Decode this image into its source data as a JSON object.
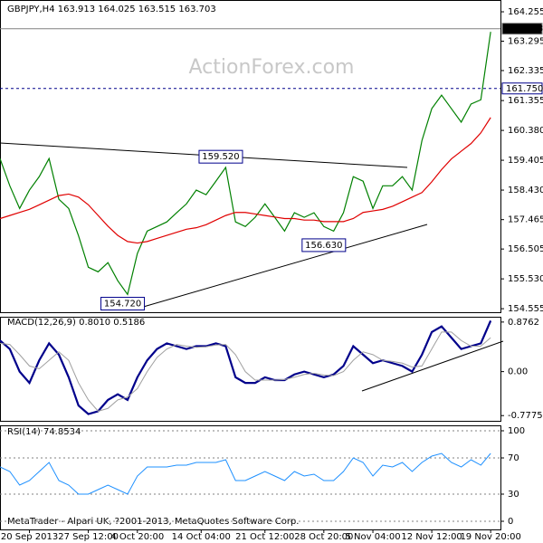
{
  "chart_data": [
    {
      "type": "line",
      "title": "GBPJPY,H4  163.913 164.025 163.515 163.703",
      "watermark": "ActionForex.com",
      "xlim": [
        0,
        51
      ],
      "ylim": [
        154.44,
        164.64
      ],
      "yticks": [
        164.255,
        163.295,
        162.335,
        161.355,
        {
          "value": 160.38,
          "label": "160.380"
        },
        159.405,
        {
          "value": 158.43,
          "label": "158.430"
        },
        157.465,
        156.505,
        {
          "value": 155.53,
          "label": "155.530"
        },
        154.555
      ],
      "levels": [
        {
          "value": 163.703,
          "label": "163.703",
          "dashed": false,
          "color": "#808080"
        },
        {
          "value": 161.75,
          "label": "161.750",
          "dashed": true,
          "color": "#00008b"
        }
      ],
      "annotations": [
        {
          "label": "159.520",
          "value": 159.52,
          "x": 22.5
        },
        {
          "label": "156.630",
          "value": 156.63,
          "x": 33
        },
        {
          "label": "154.720",
          "value": 154.72,
          "x": 12.5
        }
      ],
      "series": [
        {
          "name": "GBPJPY",
          "color": "#008000",
          "width": 1.2,
          "values": [
            159.46,
            158.57,
            157.83,
            158.43,
            158.87,
            159.46,
            158.13,
            157.83,
            156.94,
            155.91,
            155.76,
            156.06,
            155.47,
            155.02,
            156.36,
            157.09,
            157.24,
            157.39,
            157.69,
            157.98,
            158.43,
            158.28,
            158.72,
            159.17,
            157.39,
            157.24,
            157.54,
            157.98,
            157.54,
            157.09,
            157.69,
            157.54,
            157.69,
            157.24,
            157.09,
            157.69,
            158.87,
            158.72,
            157.83,
            158.57,
            158.57,
            158.87,
            158.43,
            160.05,
            161.09,
            161.53,
            161.09,
            160.65,
            161.24,
            161.38,
            163.6
          ]
        },
        {
          "name": "MA",
          "color": "#e00000",
          "width": 1.2,
          "values": [
            157.5,
            157.6,
            157.7,
            157.8,
            157.95,
            158.1,
            158.25,
            158.3,
            158.2,
            157.95,
            157.6,
            157.25,
            156.95,
            156.75,
            156.7,
            156.75,
            156.85,
            156.95,
            157.05,
            157.15,
            157.2,
            157.3,
            157.45,
            157.6,
            157.7,
            157.7,
            157.65,
            157.6,
            157.55,
            157.5,
            157.5,
            157.45,
            157.45,
            157.4,
            157.4,
            157.4,
            157.5,
            157.7,
            157.75,
            157.8,
            157.9,
            158.05,
            158.2,
            158.35,
            158.7,
            159.1,
            159.45,
            159.7,
            159.95,
            160.3,
            160.8
          ]
        }
      ]
    },
    {
      "type": "line",
      "title": "MACD(12,26,9) 0.8010 0.5186",
      "xlim": [
        0,
        51
      ],
      "ylim": [
        -0.87,
        0.97
      ],
      "yticks": [
        0.8762,
        {
          "value": 0,
          "label": "0.00"
        },
        -0.7775
      ],
      "series": [
        {
          "name": "MACD",
          "color": "#00008b",
          "width": 2.2,
          "values": [
            0.55,
            0.4,
            0,
            -0.2,
            0.2,
            0.5,
            0.3,
            -0.1,
            -0.6,
            -0.75,
            -0.7,
            -0.5,
            -0.4,
            -0.5,
            -0.1,
            0.2,
            0.4,
            0.5,
            0.45,
            0.4,
            0.45,
            0.45,
            0.5,
            0.45,
            -0.1,
            -0.2,
            -0.2,
            -0.1,
            -0.15,
            -0.15,
            -0.05,
            0,
            -0.05,
            -0.1,
            -0.05,
            0.1,
            0.45,
            0.3,
            0.15,
            0.2,
            0.15,
            0.1,
            0,
            0.3,
            0.7,
            0.8,
            0.6,
            0.4,
            0.45,
            0.5,
            0.9
          ]
        },
        {
          "name": "Signal",
          "color": "#a0a0a0",
          "width": 1,
          "values": [
            0.5,
            0.48,
            0.3,
            0.1,
            0.05,
            0.2,
            0.35,
            0.2,
            -0.2,
            -0.5,
            -0.7,
            -0.65,
            -0.5,
            -0.45,
            -0.3,
            0,
            0.25,
            0.4,
            0.48,
            0.45,
            0.43,
            0.44,
            0.47,
            0.48,
            0.3,
            0,
            -0.15,
            -0.15,
            -0.15,
            -0.14,
            -0.1,
            -0.05,
            -0.03,
            -0.06,
            -0.07,
            0,
            0.2,
            0.35,
            0.3,
            0.2,
            0.18,
            0.15,
            0.08,
            0.1,
            0.4,
            0.7,
            0.7,
            0.55,
            0.45,
            0.45,
            0.6
          ]
        }
      ]
    },
    {
      "type": "line",
      "title": "RSI(14) 74.8534",
      "footer": "MetaTrader - Alpari UK, ?2001-2013, MetaQuotes Software Corp.",
      "xlim": [
        0,
        51
      ],
      "ylim": [
        -9,
        106
      ],
      "grid": true,
      "yticks": [
        100,
        70,
        30,
        0
      ],
      "xticks": [
        {
          "value": 3,
          "label": "20 Sep 2013"
        },
        {
          "value": 9,
          "label": "27 Sep 12:00"
        },
        {
          "value": 14,
          "label": "4 Oct 20:00"
        },
        {
          "value": 20.5,
          "label": "14 Oct 04:00"
        },
        {
          "value": 27,
          "label": "21 Oct 12:00"
        },
        {
          "value": 33,
          "label": "28 Oct 20:00"
        },
        {
          "value": 38,
          "label": "5 Nov 04:00"
        },
        {
          "value": 44,
          "label": "12 Nov 12:00"
        },
        {
          "value": 50,
          "label": "19 Nov 20:00"
        }
      ],
      "series": [
        {
          "name": "RSI",
          "color": "#1e90ff",
          "width": 1,
          "values": [
            60,
            55,
            40,
            45,
            55,
            65,
            45,
            40,
            30,
            30,
            35,
            40,
            35,
            30,
            50,
            60,
            60,
            60,
            62,
            62,
            65,
            65,
            65,
            68,
            45,
            45,
            50,
            55,
            50,
            45,
            55,
            50,
            52,
            45,
            45,
            55,
            70,
            65,
            50,
            62,
            60,
            65,
            55,
            65,
            72,
            75,
            65,
            60,
            68,
            62,
            75
          ]
        }
      ]
    }
  ]
}
